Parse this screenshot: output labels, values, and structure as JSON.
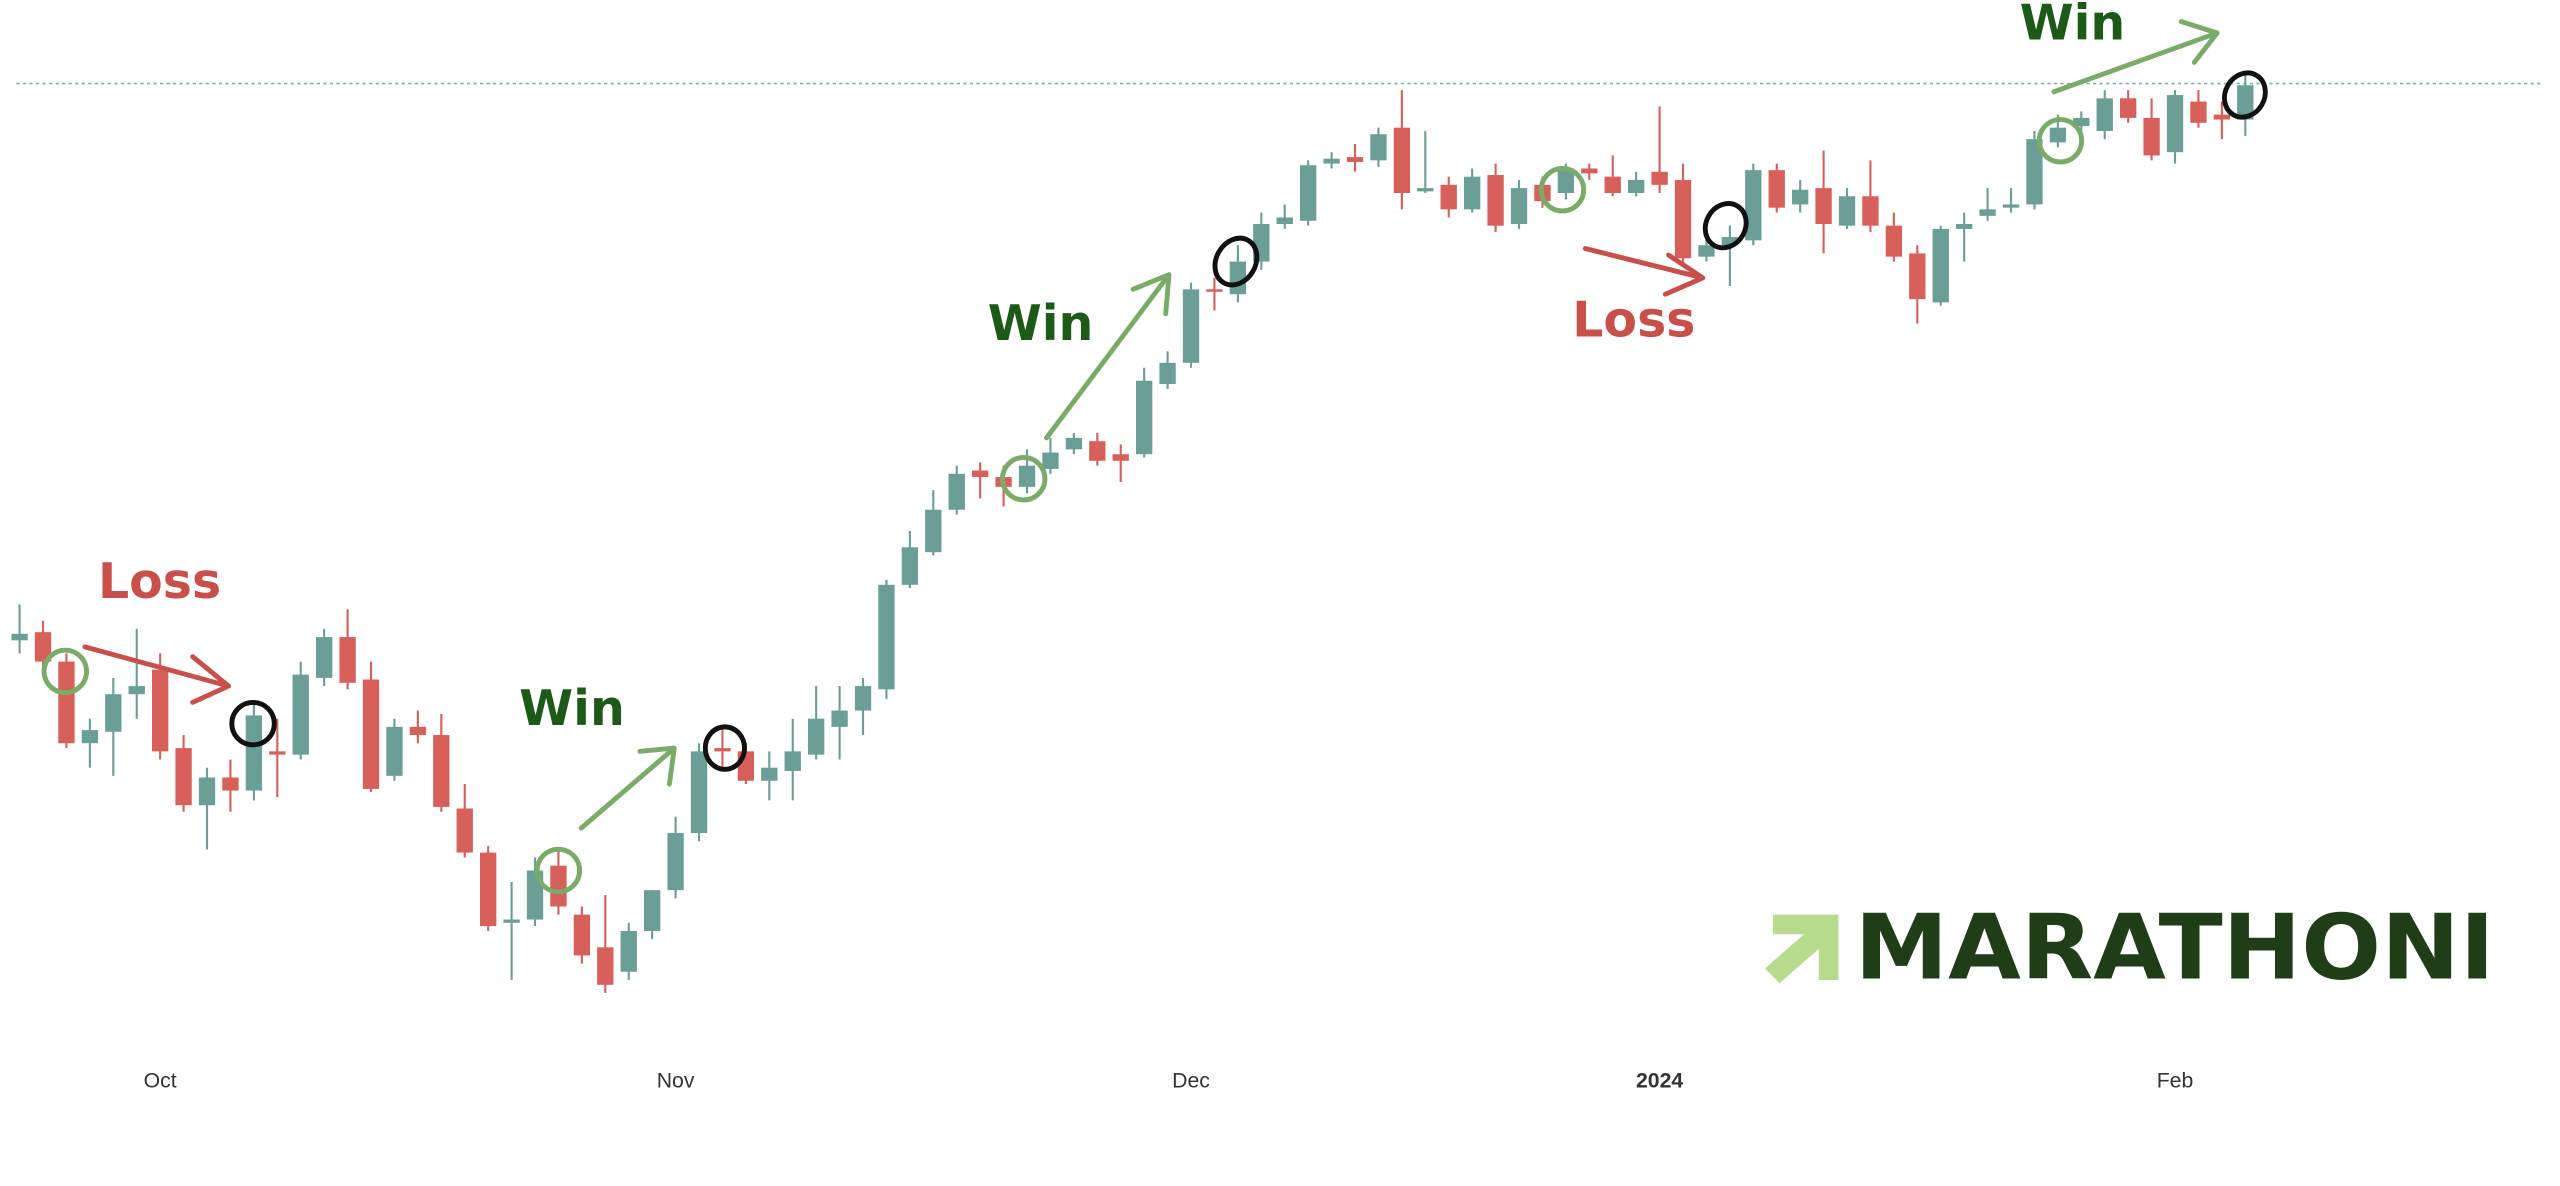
{
  "chart_data": {
    "type": "candlestick",
    "categories": [
      null,
      null,
      null,
      null,
      null,
      null,
      "Oct",
      null,
      null,
      null,
      null,
      null,
      null,
      null,
      null,
      null,
      null,
      null,
      null,
      null,
      null,
      null,
      null,
      null,
      null,
      null,
      null,
      null,
      "Nov",
      null,
      null,
      null,
      null,
      null,
      null,
      null,
      null,
      null,
      null,
      null,
      null,
      null,
      null,
      null,
      null,
      null,
      null,
      null,
      null,
      null,
      "Dec",
      null,
      null,
      null,
      null,
      null,
      null,
      null,
      null,
      null,
      null,
      null,
      null,
      null,
      null,
      null,
      null,
      null,
      null,
      null,
      "2024",
      null,
      null,
      null,
      null,
      null,
      null,
      null,
      null,
      null,
      null,
      null,
      null,
      null,
      null,
      null,
      null,
      null,
      null,
      null,
      null,
      null,
      "Feb",
      null,
      null,
      null
    ],
    "open": [
      308,
      313,
      295,
      245,
      252,
      275,
      290,
      242,
      207,
      224,
      216,
      240,
      238,
      285,
      310,
      284,
      225,
      255,
      250,
      205,
      178,
      135,
      137,
      170,
      140,
      120,
      105,
      130,
      155,
      190,
      242,
      240,
      222,
      228,
      238,
      255,
      265,
      278,
      342,
      362,
      388,
      412,
      408,
      402,
      413,
      425,
      430,
      422,
      422,
      465,
      478,
      523,
      520,
      540,
      563,
      565,
      600,
      604,
      602,
      622,
      583,
      587,
      572,
      593,
      563,
      587,
      582,
      597,
      592,
      582,
      595,
      590,
      543,
      550,
      553,
      596,
      575,
      585,
      562,
      580,
      562,
      545,
      515,
      560,
      568,
      573,
      575,
      613,
      623,
      620,
      640,
      628,
      607,
      638,
      630,
      627
    ],
    "high": [
      330,
      320,
      300,
      260,
      285,
      315,
      300,
      250,
      230,
      235,
      270,
      260,
      295,
      315,
      327,
      295,
      260,
      265,
      263,
      220,
      182,
      160,
      175,
      180,
      145,
      152,
      135,
      155,
      200,
      245,
      255,
      245,
      240,
      260,
      280,
      280,
      285,
      345,
      375,
      400,
      415,
      417,
      415,
      425,
      432,
      435,
      435,
      428,
      475,
      485,
      527,
      530,
      550,
      570,
      575,
      602,
      607,
      612,
      622,
      645,
      620,
      592,
      597,
      600,
      590,
      592,
      600,
      600,
      605,
      595,
      635,
      600,
      560,
      562,
      600,
      600,
      590,
      608,
      585,
      602,
      570,
      550,
      562,
      570,
      585,
      585,
      620,
      630,
      632,
      645,
      645,
      640,
      645,
      645,
      638,
      655
    ],
    "low": [
      300,
      290,
      242,
      230,
      225,
      260,
      235,
      203,
      180,
      203,
      210,
      212,
      235,
      280,
      278,
      215,
      222,
      245,
      203,
      175,
      130,
      100,
      133,
      140,
      110,
      92,
      100,
      125,
      150,
      185,
      230,
      220,
      210,
      210,
      235,
      235,
      250,
      272,
      340,
      360,
      385,
      395,
      390,
      398,
      410,
      422,
      415,
      405,
      420,
      462,
      475,
      510,
      515,
      535,
      560,
      562,
      597,
      595,
      598,
      572,
      582,
      567,
      570,
      558,
      560,
      573,
      578,
      590,
      580,
      580,
      582,
      537,
      540,
      525,
      550,
      570,
      570,
      545,
      560,
      558,
      540,
      502,
      513,
      540,
      565,
      570,
      572,
      610,
      620,
      615,
      625,
      602,
      600,
      622,
      615,
      617
    ],
    "close": [
      312,
      295,
      245,
      253,
      275,
      280,
      240,
      207,
      224,
      216,
      262,
      238,
      287,
      310,
      282,
      217,
      255,
      250,
      206,
      178,
      133,
      137,
      167,
      145,
      115,
      97,
      130,
      155,
      190,
      240,
      240,
      222,
      230,
      240,
      260,
      265,
      280,
      342,
      365,
      388,
      410,
      408,
      402,
      415,
      423,
      432,
      418,
      418,
      467,
      478,
      523,
      522,
      540,
      563,
      567,
      599,
      603,
      601,
      618,
      582,
      585,
      572,
      592,
      562,
      585,
      577,
      597,
      594,
      582,
      590,
      587,
      542,
      550,
      555,
      596,
      573,
      584,
      563,
      580,
      562,
      543,
      517,
      560,
      563,
      572,
      575,
      615,
      622,
      628,
      640,
      628,
      605,
      642,
      625,
      627,
      648
    ],
    "up_color": "#6b9e97",
    "down_color": "#d8605a",
    "ylim": [
      60,
      700
    ],
    "annotations": [
      "Loss",
      "Win",
      "Win",
      "Loss",
      "Win"
    ],
    "logo": "MARATHONI"
  }
}
